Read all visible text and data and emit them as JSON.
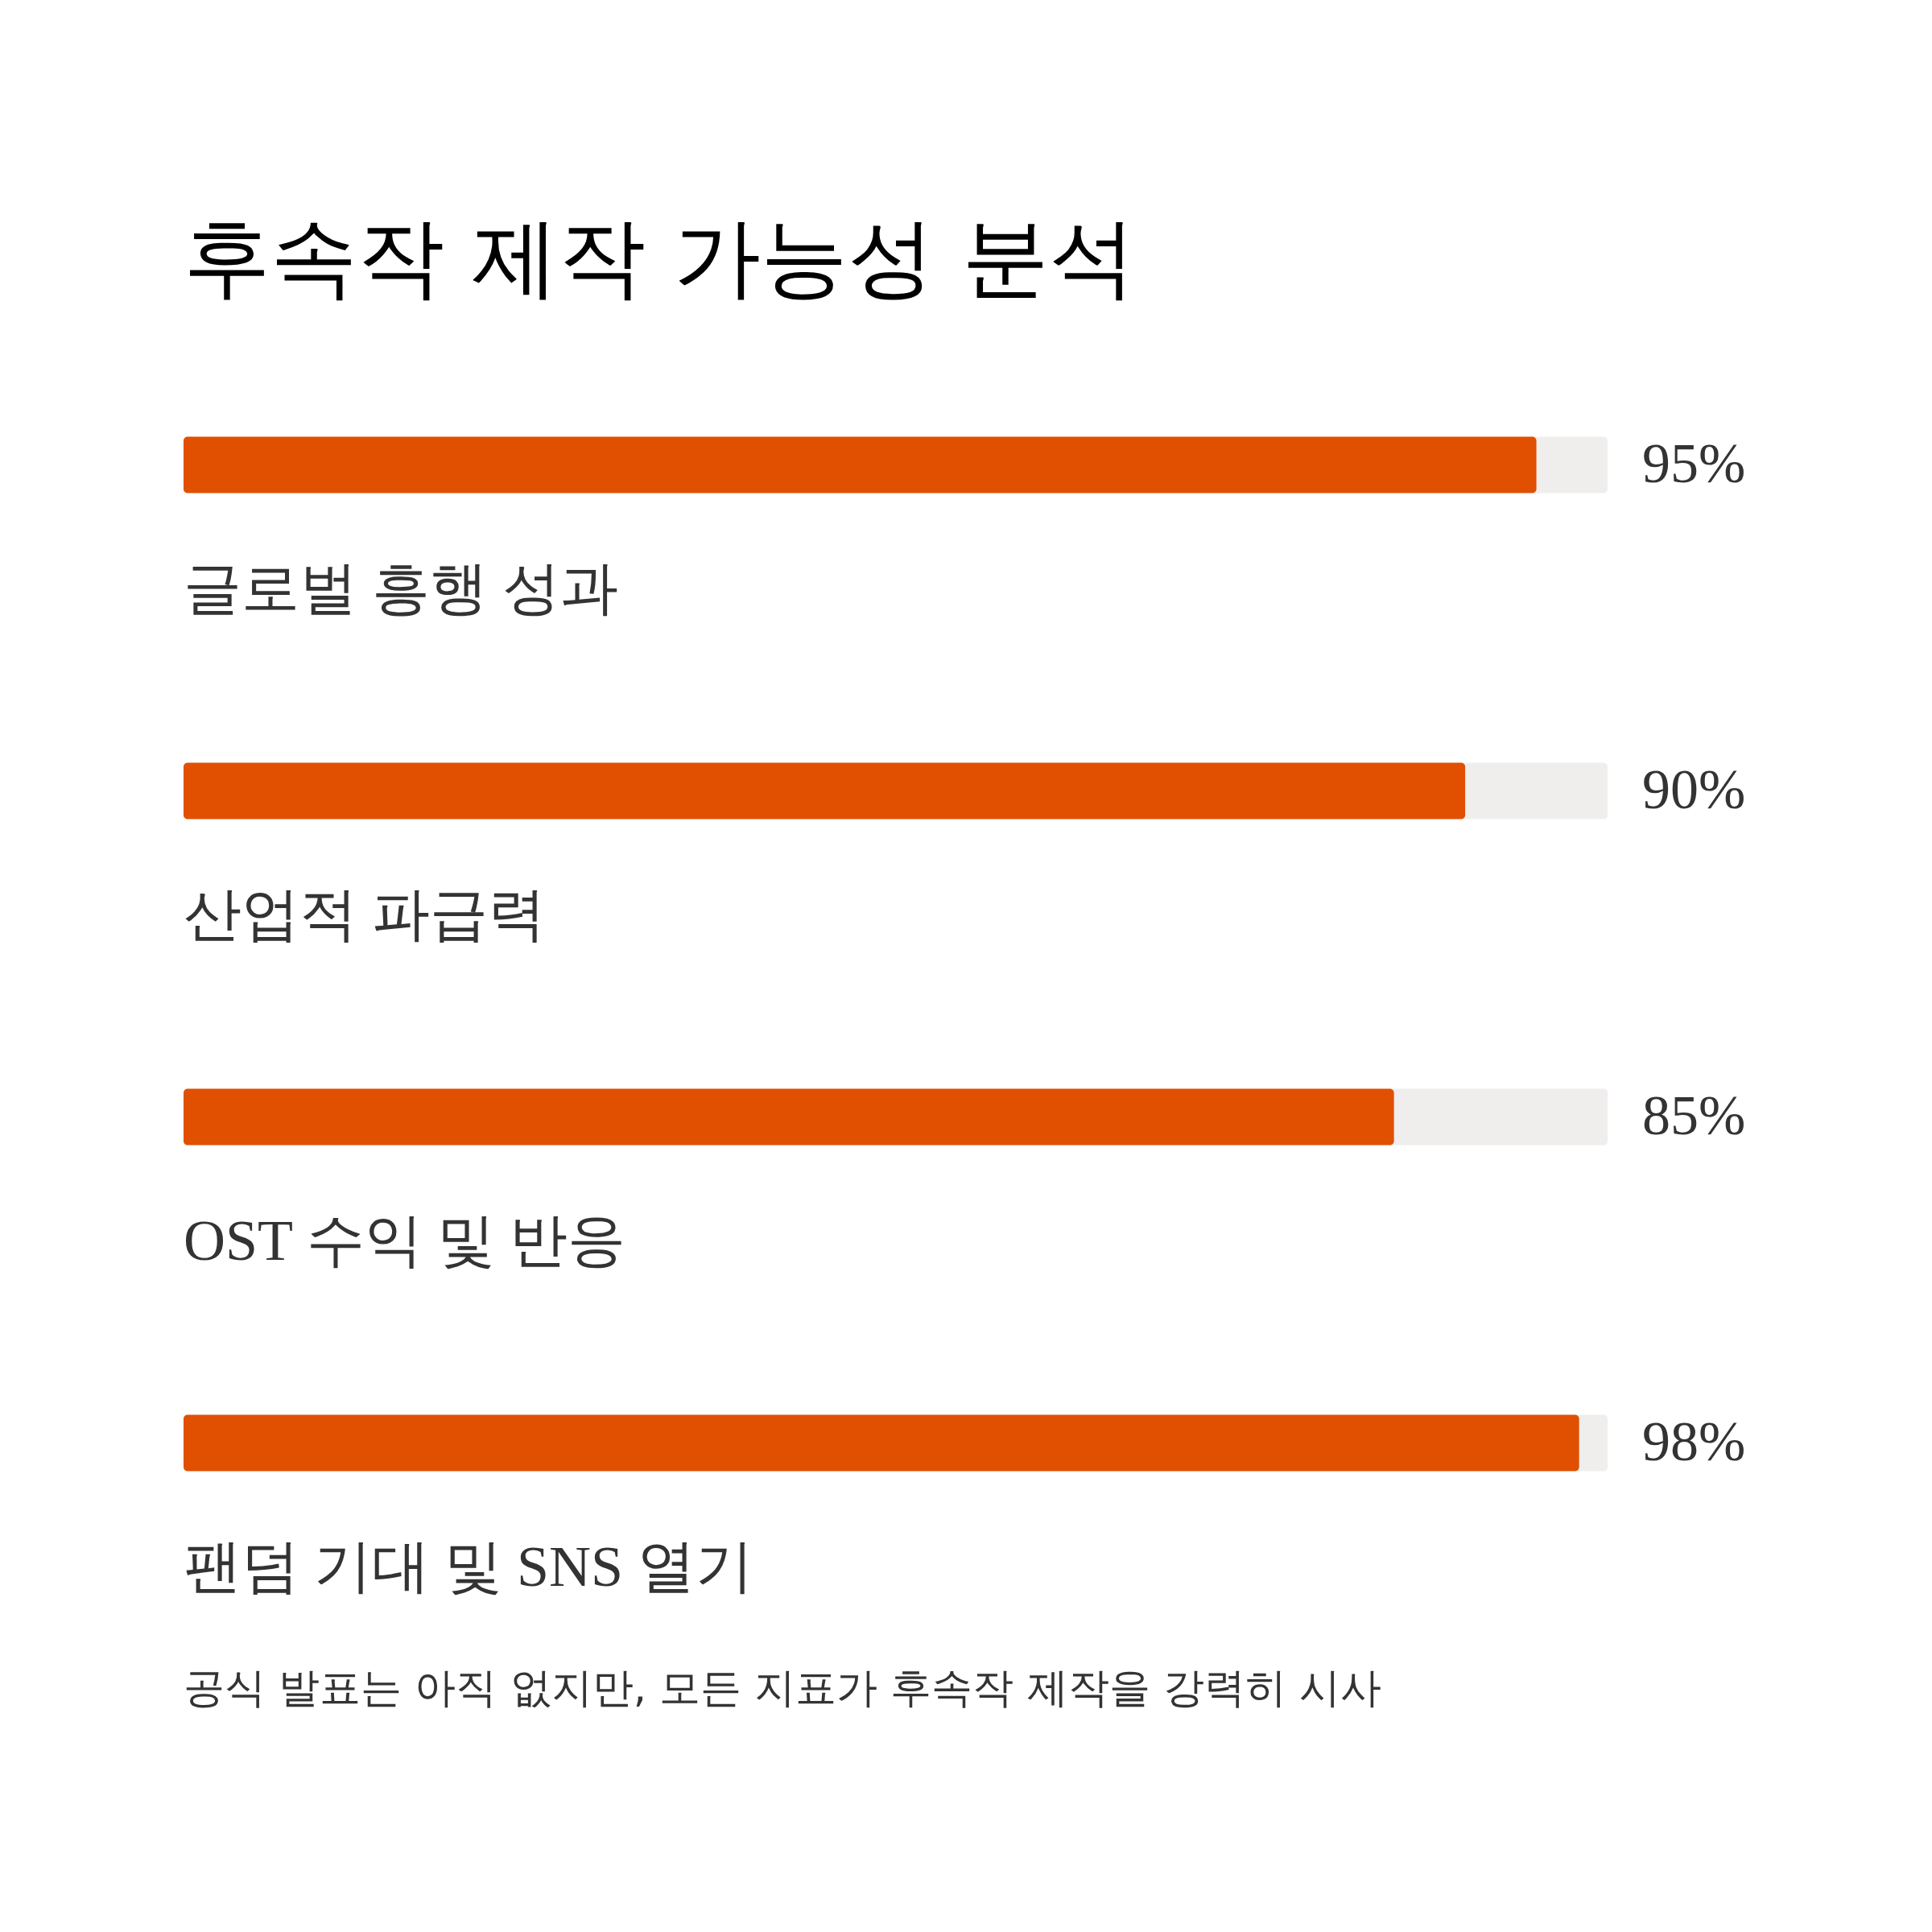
{
  "chart_data": {
    "type": "bar",
    "orientation": "horizontal",
    "title": "후속작 제작 가능성 분석",
    "categories": [
      "글로벌 흥행 성과",
      "산업적 파급력",
      "OST 수익 및 반응",
      "팬덤 기대 및 SNS 열기"
    ],
    "values": [
      95,
      90,
      85,
      98
    ],
    "color": "#e05000",
    "xlim": [
      0,
      100
    ],
    "value_labels": [
      "95%",
      "90%",
      "85%",
      "98%"
    ],
    "annotations": [
      "공식 발표는 아직 없지만, 모든 지표가 후속작 제작을 강력히 시사"
    ],
    "tick_labels": false
  }
}
